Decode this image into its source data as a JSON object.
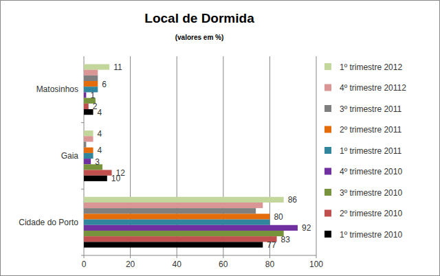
{
  "chart_data": {
    "type": "bar",
    "orientation": "horizontal",
    "title": "Local de Dormida",
    "subtitle": "(valores em %)",
    "categories": [
      "Cidade do Porto",
      "Gaia",
      "Matosinhos"
    ],
    "series": [
      {
        "name": "1º trimestre 2012",
        "color": "#c3d69b",
        "data_labels": true,
        "values": [
          86,
          4,
          11
        ]
      },
      {
        "name": "4º trimestre 20112",
        "color": "#d99694",
        "data_labels": false,
        "values": [
          77,
          4,
          6
        ]
      },
      {
        "name": "3º trimestre 2011",
        "color": "#7f7f7f",
        "data_labels": false,
        "values": [
          74,
          1,
          6
        ]
      },
      {
        "name": "2º trimestre 2011",
        "color": "#e46c0a",
        "data_labels": true,
        "values": [
          80,
          4,
          6
        ]
      },
      {
        "name": "1º trimestre 2011",
        "color": "#31859c",
        "data_labels": false,
        "values": [
          80,
          4,
          6
        ]
      },
      {
        "name": "4º trimestre 2010",
        "color": "#7030a0",
        "data_labels": true,
        "values": [
          92,
          3,
          1
        ]
      },
      {
        "name": "3º trimestre 2010",
        "color": "#77933c",
        "data_labels": false,
        "values": [
          86,
          8,
          5
        ]
      },
      {
        "name": "2º trimestre 2010",
        "color": "#c0504d",
        "data_labels": true,
        "values": [
          83,
          12,
          2
        ]
      },
      {
        "name": "1º trimestre 2010",
        "color": "#000000",
        "data_labels": true,
        "values": [
          77,
          10,
          4
        ]
      }
    ],
    "xlim": [
      0,
      100
    ],
    "xticks": [
      0,
      20,
      40,
      60,
      80,
      100
    ],
    "grid": true,
    "legend": "right"
  }
}
